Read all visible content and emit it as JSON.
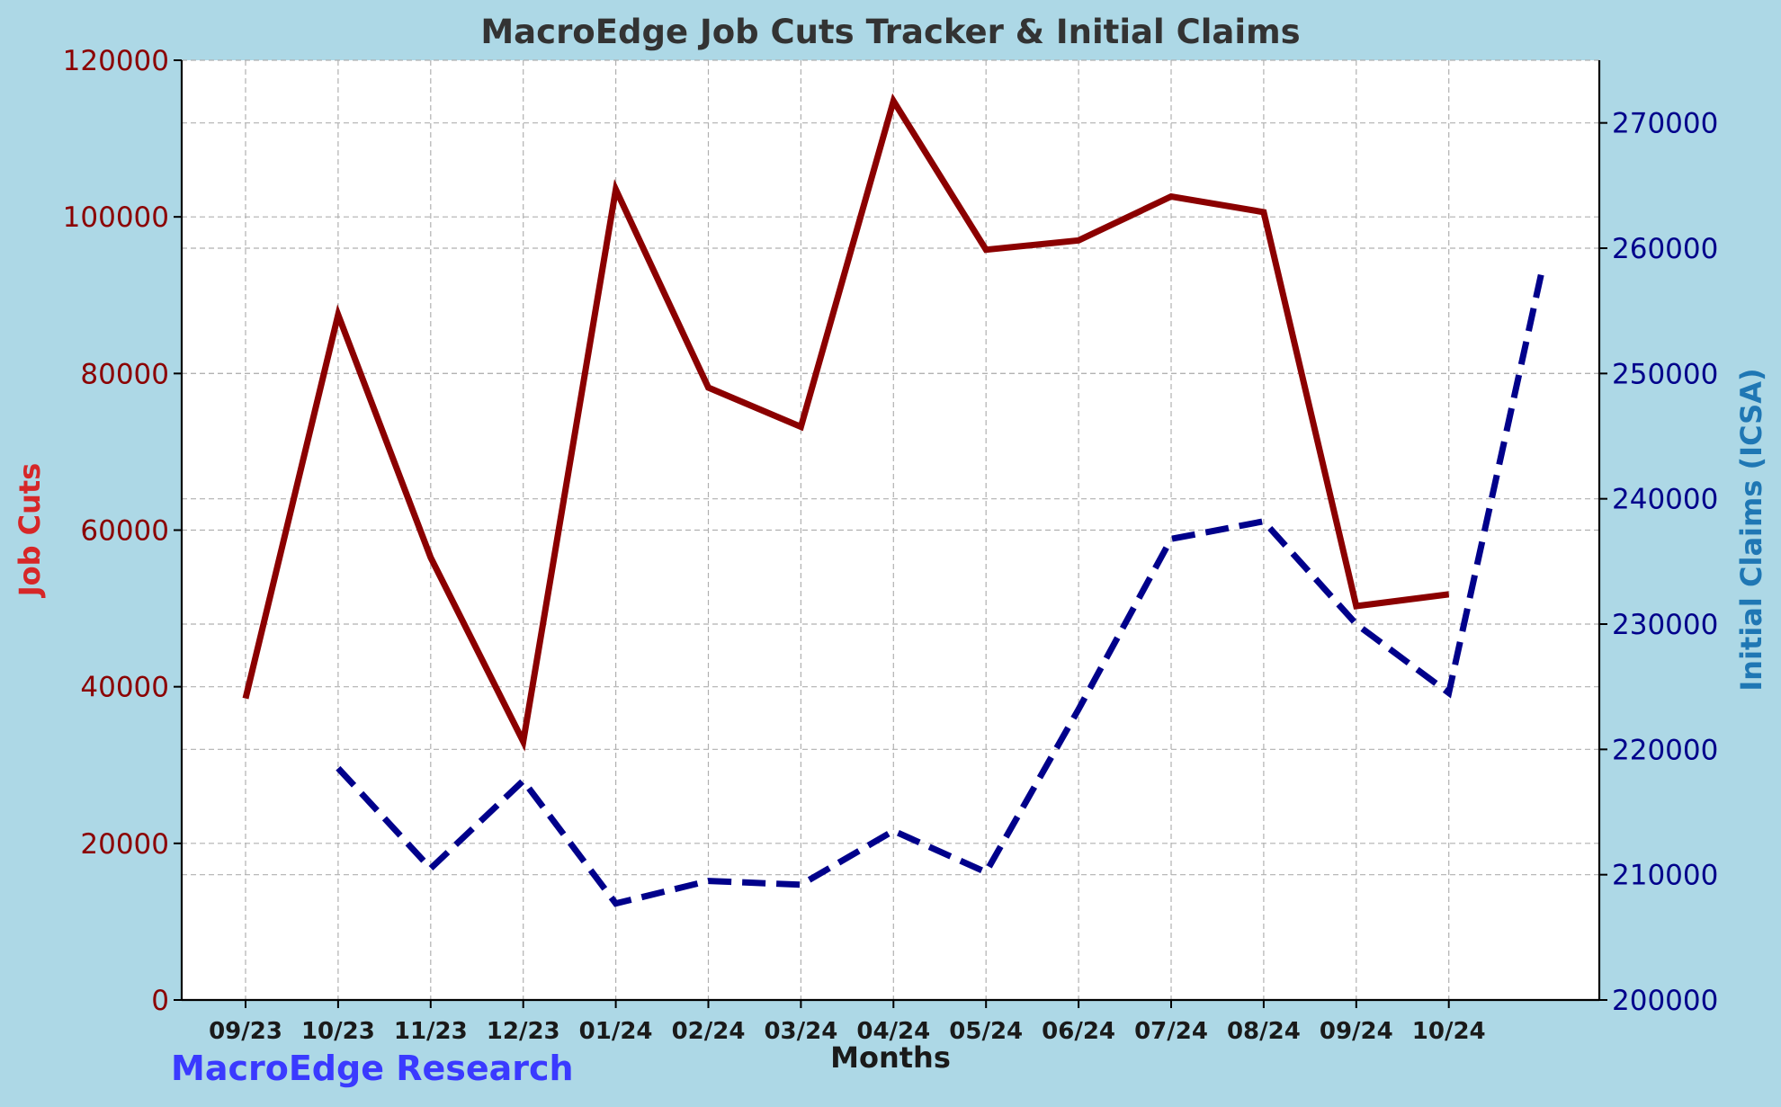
{
  "chart_data": {
    "type": "line",
    "title": "MacroEdge Job Cuts Tracker & Initial Claims",
    "xlabel": "Months",
    "ylabel_left": "Job Cuts",
    "ylabel_right": "Initial Claims (ICSA)",
    "watermark": "MacroEdge Research",
    "categories": [
      "09/23",
      "10/23",
      "11/23",
      "12/23",
      "01/24",
      "02/24",
      "03/24",
      "04/24",
      "05/24",
      "06/24",
      "07/24",
      "08/24",
      "09/24",
      "10/24"
    ],
    "y_left": {
      "min": 0,
      "max": 120000,
      "ticks": [
        0,
        20000,
        40000,
        60000,
        80000,
        100000,
        120000
      ]
    },
    "y_right": {
      "min": 200000,
      "max": 275000,
      "ticks": [
        200000,
        210000,
        220000,
        230000,
        240000,
        250000,
        260000,
        270000
      ]
    },
    "series": [
      {
        "axis": "left",
        "style": "solid",
        "color": "#8b0000",
        "points": [
          {
            "x": "09/23",
            "y": 38500
          },
          {
            "x": "10/23",
            "y": 87500
          },
          {
            "x": "11/23",
            "y": 56500
          },
          {
            "x": "12/23",
            "y": 33000
          },
          {
            "x": "01/24",
            "y": 103500
          },
          {
            "x": "02/24",
            "y": 78200
          },
          {
            "x": "03/24",
            "y": 73200
          },
          {
            "x": "04/24",
            "y": 114800
          },
          {
            "x": "05/24",
            "y": 95800
          },
          {
            "x": "06/24",
            "y": 97000
          },
          {
            "x": "07/24",
            "y": 102600
          },
          {
            "x": "08/24",
            "y": 100600
          },
          {
            "x": "09/24",
            "y": 50300
          },
          {
            "x": "10/24",
            "y": 51800
          }
        ]
      },
      {
        "axis": "right",
        "style": "dashed",
        "color": "#00008b",
        "points": [
          {
            "x": "10/23",
            "y": 218500
          },
          {
            "x": "11/23",
            "y": 210500
          },
          {
            "x": "12/23",
            "y": 217500
          },
          {
            "x": "01/24",
            "y": 207700
          },
          {
            "x": "02/24",
            "y": 209500
          },
          {
            "x": "03/24",
            "y": 209200
          },
          {
            "x": "04/24",
            "y": 213500
          },
          {
            "x": "05/24",
            "y": 210200
          },
          {
            "x": "06/24",
            "y": 223200
          },
          {
            "x": "07/24",
            "y": 236800
          },
          {
            "x": "08/24",
            "y": 238200
          },
          {
            "x": "09/24",
            "y": 230000
          },
          {
            "x": "10/24",
            "y": 224500
          },
          {
            "x": "11/24",
            "y": 258000
          }
        ]
      }
    ],
    "grid": true,
    "colors": {
      "background": "#add8e6",
      "plot_background": "#ffffff",
      "title": "#333333",
      "left_axis": "#8b0000",
      "left_label": "#d62728",
      "right_axis": "#00008b",
      "right_label": "#1f77b4",
      "watermark": "#3a3aff",
      "xlabel": "#1a1a1a"
    }
  }
}
